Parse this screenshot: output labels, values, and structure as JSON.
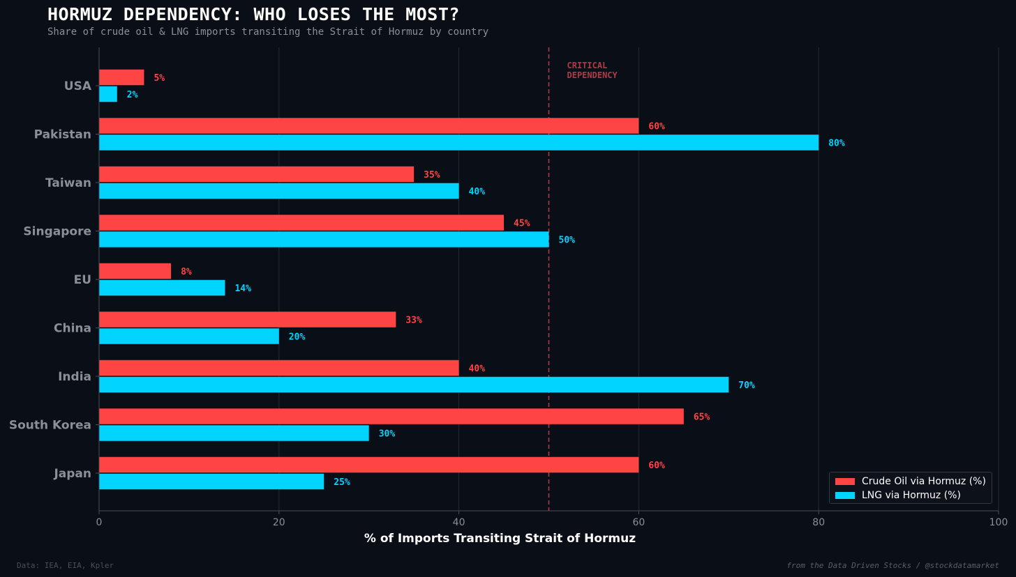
{
  "header": {
    "title": "HORMUZ DEPENDENCY: WHO LOSES THE MOST?",
    "subtitle": "Share of crude oil & LNG imports transiting the Strait of Hormuz by country"
  },
  "footer": {
    "source": "Data: IEA, EIA, Kpler",
    "credit": "from the Data Driven Stocks / @stockdatamarket"
  },
  "colors": {
    "crude": "#ff4444",
    "lng": "#00d4ff",
    "threshold": "#b03a48",
    "grid": "#262b33",
    "axis": "#4a4f58",
    "tick": "#8a8f98",
    "category": "#8a8f98",
    "xlabel": "#ffffff"
  },
  "chart_data": {
    "type": "bar",
    "orientation": "horizontal",
    "categories": [
      "USA",
      "Pakistan",
      "Taiwan",
      "Singapore",
      "EU",
      "China",
      "India",
      "South Korea",
      "Japan"
    ],
    "series": [
      {
        "name": "Crude Oil via Hormuz (%)",
        "values": [
          5,
          60,
          35,
          45,
          8,
          33,
          40,
          65,
          60
        ]
      },
      {
        "name": "LNG via Hormuz (%)",
        "values": [
          2,
          80,
          40,
          50,
          14,
          20,
          70,
          30,
          25
        ]
      }
    ],
    "xlabel": "% of Imports Transiting Strait of Hormuz",
    "xlim": [
      0,
      100
    ],
    "xticks": [
      0,
      20,
      40,
      60,
      80,
      100
    ],
    "label_suffix": "%",
    "threshold": {
      "value": 50,
      "label_lines": [
        "CRITICAL",
        "DEPENDENCY"
      ]
    },
    "grid": true,
    "legend_position": "bottom-right"
  }
}
